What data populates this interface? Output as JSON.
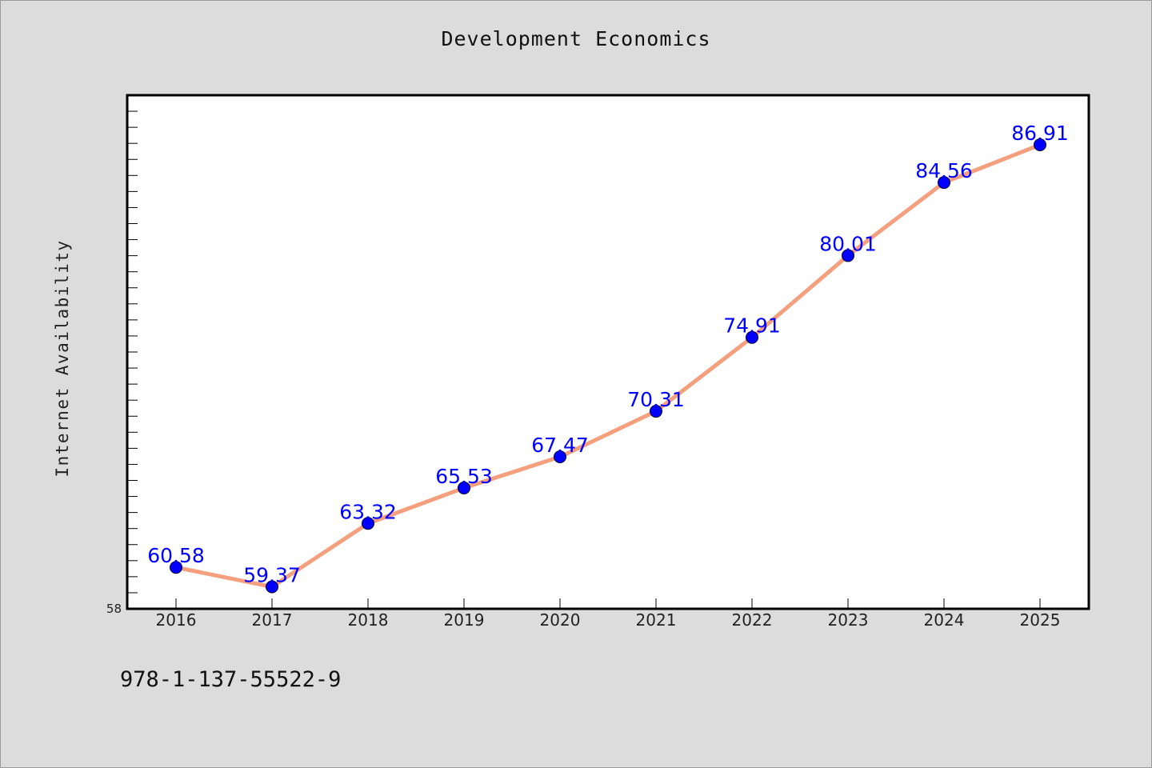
{
  "chart_data": {
    "type": "line",
    "title": "Development Economics",
    "xlabel": "",
    "ylabel": "Internet Availability",
    "categories": [
      "2016",
      "2017",
      "2018",
      "2019",
      "2020",
      "2021",
      "2022",
      "2023",
      "2024",
      "2025"
    ],
    "series": [
      {
        "values": [
          60.58,
          59.37,
          63.32,
          65.53,
          67.47,
          70.31,
          74.91,
          80.01,
          84.56,
          86.91
        ],
        "labels": [
          "60.58",
          "59.37",
          "63.32",
          "65.53",
          "67.47",
          "70.31",
          "74.91",
          "80.01",
          "84.56",
          "86.91"
        ],
        "line_color": "#f4a07e",
        "marker_color": "#0000ff"
      }
    ],
    "ylim": [
      58,
      90
    ],
    "ymin_label": "58",
    "grid": false,
    "legend": "none"
  },
  "note": "978-1-137-55522-9"
}
